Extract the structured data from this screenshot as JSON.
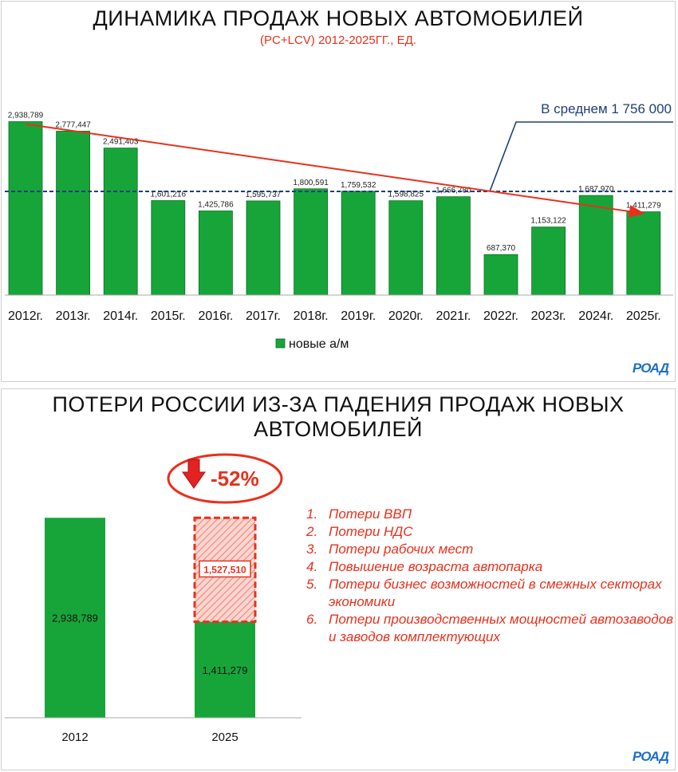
{
  "top_chart": {
    "title": "ДИНАМИКА ПРОДАЖ НОВЫХ АВТОМОБИЛЕЙ",
    "subtitle": "(PC+LCV) 2012-2025ГГ., ЕД.",
    "avg_label": "В среднем 1 756 000",
    "legend_label": "новые а/м",
    "logo": "РОАД"
  },
  "bottom_chart": {
    "title_line1": "ПОТЕРИ РОССИИ ИЗ-ЗА ПАДЕНИЯ ПРОДАЖ НОВЫХ",
    "title_line2": "АВТОМОБИЛЕЙ",
    "drop_label": "-52%",
    "loss_items": [
      {
        "num": "1.",
        "text": "Потери ВВП"
      },
      {
        "num": "2.",
        "text": "Потери НДС"
      },
      {
        "num": "3.",
        "text": "Потери рабочих мест"
      },
      {
        "num": "4.",
        "text": "Повышение возраста автопарка"
      },
      {
        "num": "5.",
        "text": "Потери бизнес возможностей в смежных секторах экономики"
      },
      {
        "num": "6.",
        "text": "Потери производственных мощностей автозаводов и заводов комплектующих"
      }
    ],
    "logo": "РОАД"
  },
  "colors": {
    "bar": "#17a53a",
    "accent": "#e8301c",
    "average_line": "#1f3f7a",
    "logo": "#1c6fc8"
  },
  "chart_data": [
    {
      "type": "bar",
      "title": "ДИНАМИКА ПРОДАЖ НОВЫХ АВТОМОБИЛЕЙ",
      "subtitle": "(PC+LCV) 2012-2025ГГ., ЕД.",
      "categories": [
        "2012г.",
        "2013г.",
        "2014г.",
        "2015г.",
        "2016г.",
        "2017г.",
        "2018г.",
        "2019г.",
        "2020г.",
        "2021г.",
        "2022г.",
        "2023г.",
        "2024г.",
        "2025г."
      ],
      "series": [
        {
          "name": "новые а/м",
          "values": [
            2938789,
            2777447,
            2491403,
            1601216,
            1425786,
            1595737,
            1800591,
            1759532,
            1598825,
            1666780,
            687370,
            1153122,
            1687970,
            1411279
          ]
        }
      ],
      "data_labels": [
        "2,938,789",
        "2,777,447",
        "2,491,403",
        "1,601,216",
        "1,425,786",
        "1,595,737",
        "1,800,591",
        "1,759,532",
        "1,598,825",
        "1,666,780",
        "687,370",
        "1,153,122",
        "1,687,970",
        "1,411,279"
      ],
      "average": 1756000,
      "ylim": [
        0,
        3000000
      ],
      "grid": false,
      "legend": "bottom"
    },
    {
      "type": "bar",
      "categories": [
        "2012",
        "2025"
      ],
      "values": [
        2938789,
        1411279
      ],
      "data_labels": [
        "2,938,789",
        "1,411,279"
      ],
      "loss_value": 1527510,
      "loss_label": "1,527,510",
      "change_label": "-52%",
      "ylim": [
        0,
        3000000
      ]
    }
  ]
}
